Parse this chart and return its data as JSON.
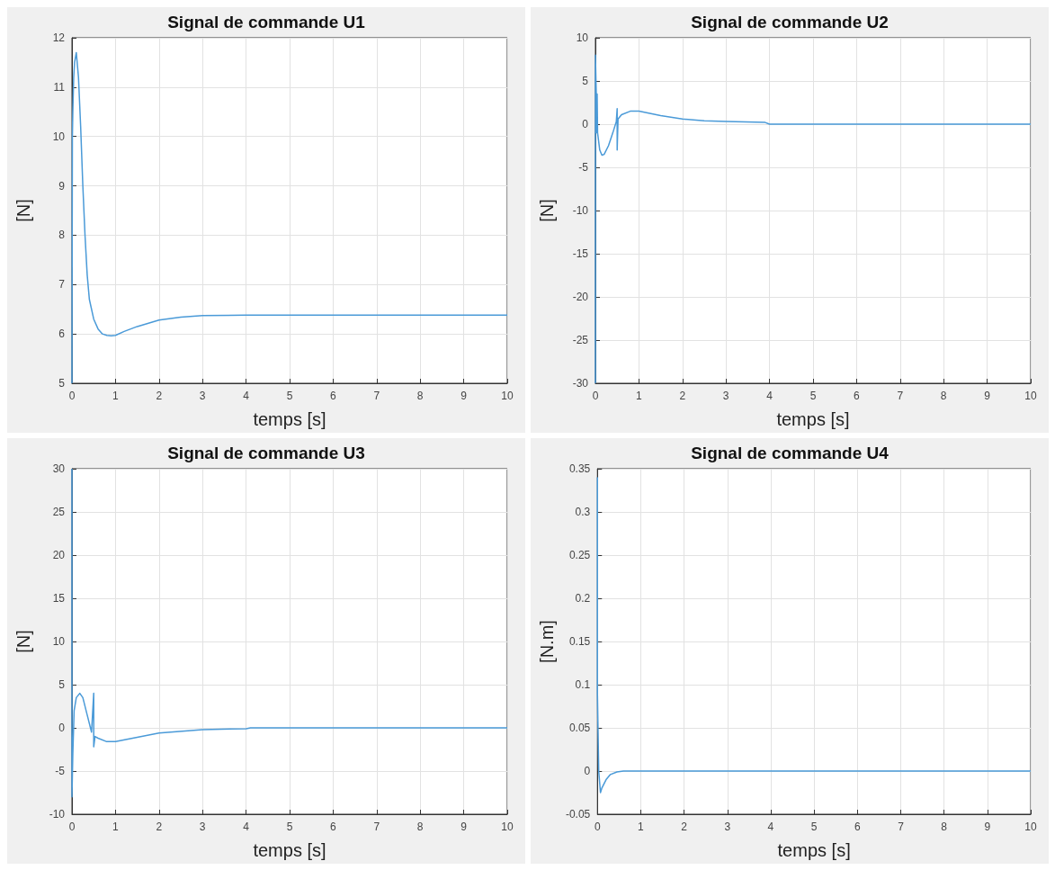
{
  "chart_data": [
    {
      "type": "line",
      "title": "Signal de commande U1",
      "xlabel": "temps [s]",
      "ylabel": "[N]",
      "grid": true,
      "xlim": [
        0,
        10
      ],
      "xticks": [
        0,
        1,
        2,
        3,
        4,
        5,
        6,
        7,
        8,
        9,
        10
      ],
      "ylim": [
        5,
        12
      ],
      "yticks": [
        5,
        6,
        7,
        8,
        9,
        10,
        11,
        12
      ],
      "series": [
        {
          "color": "#4a9ad8",
          "x": [
            0,
            0.01,
            0.02,
            0.04,
            0.06,
            0.1,
            0.15,
            0.2,
            0.25,
            0.3,
            0.35,
            0.4,
            0.5,
            0.6,
            0.7,
            0.8,
            0.9,
            1.0,
            1.2,
            1.5,
            2,
            2.5,
            3,
            4,
            10
          ],
          "values": [
            5,
            10,
            10.5,
            11.2,
            11.5,
            11.7,
            11.2,
            10.2,
            9,
            8,
            7.2,
            6.7,
            6.3,
            6.1,
            6.0,
            5.97,
            5.96,
            5.97,
            6.05,
            6.15,
            6.28,
            6.34,
            6.37,
            6.38,
            6.38
          ]
        }
      ]
    },
    {
      "type": "line",
      "title": "Signal de commande U2",
      "xlabel": "temps [s]",
      "ylabel": "[N]",
      "grid": true,
      "xlim": [
        0,
        10
      ],
      "xticks": [
        0,
        1,
        2,
        3,
        4,
        5,
        6,
        7,
        8,
        9,
        10
      ],
      "ylim": [
        -30,
        10
      ],
      "yticks": [
        -30,
        -25,
        -20,
        -15,
        -10,
        -5,
        0,
        5,
        10
      ],
      "series": [
        {
          "color": "#4a9ad8",
          "x": [
            0,
            0,
            0.02,
            0.03,
            0.04,
            0.05,
            0.1,
            0.15,
            0.2,
            0.3,
            0.4,
            0.48,
            0.5,
            0.5,
            0.52,
            0.6,
            0.8,
            1,
            1.5,
            2,
            2.5,
            3,
            3.9,
            4,
            10
          ],
          "values": [
            -30,
            8,
            3.5,
            -1,
            3.5,
            -1,
            -3,
            -3.6,
            -3.5,
            -2.5,
            -1,
            0.3,
            1.8,
            -3,
            0.6,
            1.1,
            1.5,
            1.5,
            1.0,
            0.6,
            0.4,
            0.3,
            0.2,
            0,
            0
          ]
        }
      ]
    },
    {
      "type": "line",
      "title": "Signal de commande U3",
      "xlabel": "temps [s]",
      "ylabel": "[N]",
      "grid": true,
      "xlim": [
        0,
        10
      ],
      "xticks": [
        0,
        1,
        2,
        3,
        4,
        5,
        6,
        7,
        8,
        9,
        10
      ],
      "ylim": [
        -10,
        30
      ],
      "yticks": [
        -10,
        -5,
        0,
        5,
        10,
        15,
        20,
        25,
        30
      ],
      "series": [
        {
          "color": "#4a9ad8",
          "x": [
            0,
            0,
            0.02,
            0.05,
            0.1,
            0.18,
            0.25,
            0.35,
            0.45,
            0.5,
            0.5,
            0.53,
            0.6,
            0.8,
            1,
            1.5,
            2,
            3,
            4,
            4.1,
            10
          ],
          "values": [
            30,
            -8,
            -3,
            2,
            3.5,
            4,
            3.5,
            1.5,
            -0.5,
            4,
            -2.2,
            -1,
            -1.2,
            -1.6,
            -1.6,
            -1.1,
            -0.6,
            -0.2,
            -0.1,
            0,
            0
          ]
        }
      ]
    },
    {
      "type": "line",
      "title": "Signal de commande U4",
      "xlabel": "temps [s]",
      "ylabel": "[N.m]",
      "grid": true,
      "xlim": [
        0,
        10
      ],
      "xticks": [
        0,
        1,
        2,
        3,
        4,
        5,
        6,
        7,
        8,
        9,
        10
      ],
      "ylim": [
        -0.05,
        0.35
      ],
      "yticks": [
        -0.05,
        0,
        0.05,
        0.1,
        0.15,
        0.2,
        0.25,
        0.3,
        0.35
      ],
      "series": [
        {
          "color": "#4a9ad8",
          "x": [
            0,
            0,
            0.03,
            0.07,
            0.1,
            0.2,
            0.3,
            0.45,
            0.6,
            10
          ],
          "values": [
            0.34,
            0.09,
            0.0,
            -0.025,
            -0.02,
            -0.01,
            -0.004,
            -0.001,
            0,
            0
          ]
        }
      ]
    }
  ]
}
